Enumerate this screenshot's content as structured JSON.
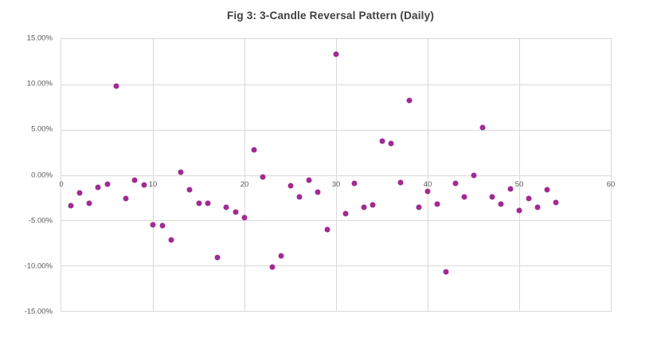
{
  "chart_data": {
    "type": "scatter",
    "title": "Fig 3: 3-Candle Reversal Pattern (Daily)",
    "xlabel": "",
    "ylabel": "",
    "xlim": [
      0,
      60
    ],
    "ylim": [
      -15,
      15
    ],
    "grid": true,
    "legend": "none",
    "y_unit": "percent",
    "marker_color": "#A02B93",
    "grid_color": "#D9D9D9",
    "tick_color": "#595959",
    "title_color": "#3F3F3F",
    "x_ticks": [
      0,
      10,
      20,
      30,
      40,
      50,
      60
    ],
    "x_tick_labels": [
      "0",
      "10",
      "20",
      "30",
      "40",
      "50",
      "60"
    ],
    "y_ticks": [
      15,
      10,
      5,
      0,
      -5,
      -10,
      -15
    ],
    "y_tick_labels": [
      "15.00%",
      "10.00%",
      "5.00%",
      "0.00%",
      "-5.00%",
      "-10.00%",
      "-15.00%"
    ],
    "x": [
      1,
      2,
      3,
      4,
      5,
      6,
      7,
      8,
      9,
      10,
      11,
      12,
      13,
      14,
      15,
      16,
      17,
      18,
      19,
      20,
      21,
      22,
      23,
      24,
      25,
      26,
      27,
      28,
      29,
      30,
      31,
      32,
      33,
      34,
      35,
      36,
      37,
      38,
      39,
      40,
      41,
      42,
      43,
      44,
      45,
      46,
      47,
      48,
      49,
      50,
      51,
      52,
      53,
      54
    ],
    "y": [
      -3.4,
      -2.0,
      -3.1,
      -1.4,
      -1.0,
      9.8,
      -2.6,
      -0.6,
      -1.1,
      -5.5,
      -5.6,
      -7.2,
      0.3,
      -1.6,
      -3.1,
      -3.1,
      -9.1,
      -3.6,
      -4.1,
      -4.7,
      2.8,
      -0.2,
      -10.2,
      -8.9,
      -1.2,
      -2.4,
      -0.6,
      -1.9,
      -6.0,
      13.3,
      -4.3,
      -0.9,
      -3.6,
      -3.3,
      3.7,
      3.5,
      -0.8,
      8.2,
      -3.6,
      -1.8,
      -3.2,
      -10.7,
      -0.9,
      -2.4,
      0.0,
      5.2,
      -2.4,
      -3.2,
      -1.5,
      -3.9,
      -2.6,
      -3.6,
      -1.6,
      -3.0
    ]
  }
}
